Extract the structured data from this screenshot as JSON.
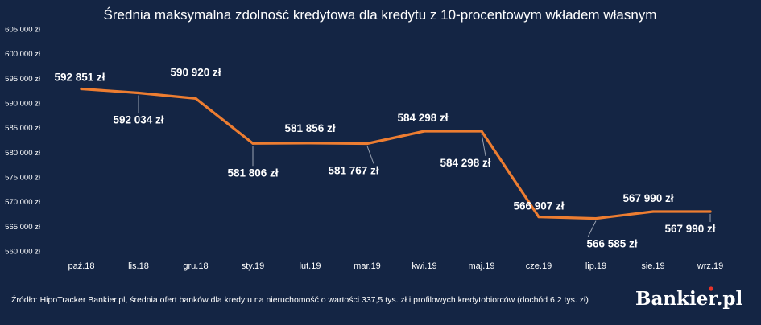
{
  "chart_data": {
    "type": "line",
    "title": "Średnia maksymalna zdolność kredytowa dla kredytu z 10-procentowym wkładem własnym",
    "categories": [
      "paź.18",
      "lis.18",
      "gru.18",
      "sty.19",
      "lut.19",
      "mar.19",
      "kwi.19",
      "maj.19",
      "cze.19",
      "lip.19",
      "sie.19",
      "wrz.19"
    ],
    "series": [
      {
        "values": [
          592851,
          592034,
          590920,
          581806,
          581856,
          581767,
          584298,
          584298,
          566907,
          566585,
          567990,
          567990
        ],
        "labels": [
          "592 851 zł",
          "592 034 zł",
          "590 920 zł",
          "581 806 zł",
          "581 856 zł",
          "581 767 zł",
          "584 298 zł",
          "584 298 zł",
          "566 907 zł",
          "566 585 zł",
          "567 990 zł",
          "567 990 zł"
        ],
        "color": "#ed7d31"
      }
    ],
    "ylim": [
      560000,
      605000
    ],
    "yticks": [
      560000,
      565000,
      570000,
      575000,
      580000,
      585000,
      590000,
      595000,
      600000,
      605000
    ],
    "ytick_labels": [
      "560 000 zł",
      "565 000 zł",
      "570 000 zł",
      "575 000 zł",
      "580 000 zł",
      "585 000 zł",
      "590 000 zł",
      "595 000 zł",
      "600 000 zł",
      "605 000 zł"
    ],
    "grid": false,
    "legend": "none"
  },
  "source": "Źródło: HipoTracker Bankier.pl, średnia ofert banków dla kredytu na nieruchomość o wartości 337,5 tys. zł i profilowych kredytobiorców (dochód 6,2 tys. zł)",
  "logo": {
    "text": "Bankier",
    "suffix": ".pl",
    "dot_color": "#e8332a"
  },
  "colors": {
    "background": "#142544",
    "line": "#ed7d31",
    "text": "#ffffff"
  }
}
